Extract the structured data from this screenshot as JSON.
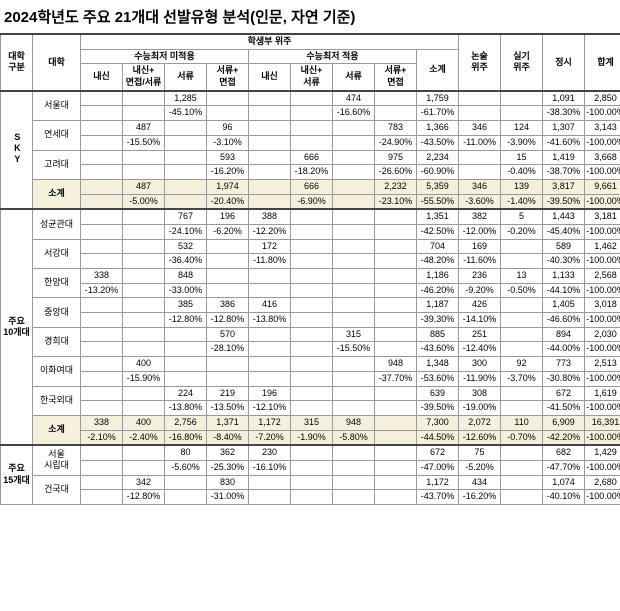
{
  "title": "2024학년도 주요 21개대 선발유형 분석(인문, 자연 기준)",
  "headers": {
    "group": "대학\n구분",
    "univ": "대학",
    "student_main": "학생부 위주",
    "no_min": "수능최저 미적용",
    "with_min": "수능최저 적용",
    "cols": [
      "내신",
      "내신+\n면접/서류",
      "서류",
      "서류+\n면접",
      "내신",
      "내신+\n서류",
      "서류",
      "서류+\n면접",
      "소계",
      "논술\n위주",
      "실기\n위주",
      "정시",
      "합계"
    ]
  },
  "groups": [
    {
      "label": "SKY",
      "rows": [
        {
          "name": "서울대",
          "v": [
            "",
            "",
            "1,285",
            "",
            "",
            "",
            "474",
            "",
            "1,759",
            "",
            "",
            "1,091",
            "2,850"
          ],
          "p": [
            "",
            "",
            "-45.10%",
            "",
            "",
            "",
            "-16.60%",
            "",
            "-61.70%",
            "",
            "",
            "-38.30%",
            "-100.00%"
          ]
        },
        {
          "name": "연세대",
          "v": [
            "",
            "487",
            "",
            "96",
            "",
            "",
            "",
            "783",
            "1,366",
            "346",
            "124",
            "1,307",
            "3,143"
          ],
          "p": [
            "",
            "-15.50%",
            "",
            "-3.10%",
            "",
            "",
            "",
            "-24.90%",
            "-43.50%",
            "-11.00%",
            "-3.90%",
            "-41.60%",
            "-100.00%"
          ]
        },
        {
          "name": "고려대",
          "v": [
            "",
            "",
            "",
            "593",
            "",
            "666",
            "",
            "975",
            "2,234",
            "",
            "15",
            "1,419",
            "3,668"
          ],
          "p": [
            "",
            "",
            "",
            "-16.20%",
            "",
            "-18.20%",
            "",
            "-26.60%",
            "-60.90%",
            "",
            "-0.40%",
            "-38.70%",
            "-100.00%"
          ]
        },
        {
          "name": "소계",
          "hl": true,
          "v": [
            "",
            "487",
            "",
            "1,974",
            "",
            "666",
            "",
            "2,232",
            "5,359",
            "346",
            "139",
            "3,817",
            "9,661"
          ],
          "p": [
            "",
            "-5.00%",
            "",
            "-20.40%",
            "",
            "-6.90%",
            "",
            "-23.10%",
            "-55.50%",
            "-3.60%",
            "-1.40%",
            "-39.50%",
            "-100.00%"
          ]
        }
      ]
    },
    {
      "label": "주요\n10개대",
      "rows": [
        {
          "name": "성균관대",
          "v": [
            "",
            "",
            "767",
            "196",
            "388",
            "",
            "",
            "",
            "1,351",
            "382",
            "5",
            "1,443",
            "3,181"
          ],
          "p": [
            "",
            "",
            "-24.10%",
            "-6.20%",
            "-12.20%",
            "",
            "",
            "",
            "-42.50%",
            "-12.00%",
            "-0.20%",
            "-45.40%",
            "-100.00%"
          ]
        },
        {
          "name": "서강대",
          "v": [
            "",
            "",
            "532",
            "",
            "172",
            "",
            "",
            "",
            "704",
            "169",
            "",
            "589",
            "1,462"
          ],
          "p": [
            "",
            "",
            "-36.40%",
            "",
            "-11.80%",
            "",
            "",
            "",
            "-48.20%",
            "-11.60%",
            "",
            "-40.30%",
            "-100.00%"
          ]
        },
        {
          "name": "한양대",
          "v": [
            "338",
            "",
            "848",
            "",
            "",
            "",
            "",
            "",
            "1,186",
            "236",
            "13",
            "1,133",
            "2,568"
          ],
          "p": [
            "-13.20%",
            "",
            "-33.00%",
            "",
            "",
            "",
            "",
            "",
            "-46.20%",
            "-9.20%",
            "-0.50%",
            "-44.10%",
            "-100.00%"
          ]
        },
        {
          "name": "중앙대",
          "v": [
            "",
            "",
            "385",
            "386",
            "416",
            "",
            "",
            "",
            "1,187",
            "426",
            "",
            "1,405",
            "3,018"
          ],
          "p": [
            "",
            "",
            "-12.80%",
            "-12.80%",
            "-13.80%",
            "",
            "",
            "",
            "-39.30%",
            "-14.10%",
            "",
            "-46.60%",
            "-100.00%"
          ]
        },
        {
          "name": "경희대",
          "v": [
            "",
            "",
            "",
            "570",
            "",
            "",
            "315",
            "",
            "885",
            "251",
            "",
            "894",
            "2,030"
          ],
          "p": [
            "",
            "",
            "",
            "-28.10%",
            "",
            "",
            "-15.50%",
            "",
            "-43.60%",
            "-12.40%",
            "",
            "-44.00%",
            "-100.00%"
          ]
        },
        {
          "name": "이화여대",
          "v": [
            "",
            "400",
            "",
            "",
            "",
            "",
            "",
            "948",
            "1,348",
            "300",
            "92",
            "773",
            "2,513"
          ],
          "p": [
            "",
            "-15.90%",
            "",
            "",
            "",
            "",
            "",
            "-37.70%",
            "-53.60%",
            "-11.90%",
            "-3.70%",
            "-30.80%",
            "-100.00%"
          ]
        },
        {
          "name": "한국외대",
          "v": [
            "",
            "",
            "224",
            "219",
            "196",
            "",
            "",
            "",
            "639",
            "308",
            "",
            "672",
            "1,619"
          ],
          "p": [
            "",
            "",
            "-13.80%",
            "-13.50%",
            "-12.10%",
            "",
            "",
            "",
            "-39.50%",
            "-19.00%",
            "",
            "-41.50%",
            "-100.00%"
          ]
        },
        {
          "name": "소계",
          "hl": true,
          "v": [
            "338",
            "400",
            "2,756",
            "1,371",
            "1,172",
            "315",
            "948",
            "",
            "7,300",
            "2,072",
            "110",
            "6,909",
            "16,391"
          ],
          "p": [
            "-2.10%",
            "-2.40%",
            "-16.80%",
            "-8.40%",
            "-7.20%",
            "-1.90%",
            "-5.80%",
            "",
            "-44.50%",
            "-12.60%",
            "-0.70%",
            "-42.20%",
            "-100.00%"
          ]
        }
      ]
    },
    {
      "label": "주요\n15개대",
      "rows": [
        {
          "name": "서울\n시립대",
          "v": [
            "",
            "",
            "80",
            "362",
            "230",
            "",
            "",
            "",
            "672",
            "75",
            "",
            "682",
            "1,429"
          ],
          "p": [
            "",
            "",
            "-5.60%",
            "-25.30%",
            "-16.10%",
            "",
            "",
            "",
            "-47.00%",
            "-5.20%",
            "",
            "-47.70%",
            "-100.00%"
          ]
        },
        {
          "name": "건국대",
          "v": [
            "",
            "342",
            "",
            "830",
            "",
            "",
            "",
            "",
            "1,172",
            "434",
            "",
            "1,074",
            "2,680"
          ],
          "p": [
            "",
            "-12.80%",
            "",
            "-31.00%",
            "",
            "",
            "",
            "",
            "-43.70%",
            "-16.20%",
            "",
            "-40.10%",
            "-100.00%"
          ]
        }
      ]
    }
  ]
}
